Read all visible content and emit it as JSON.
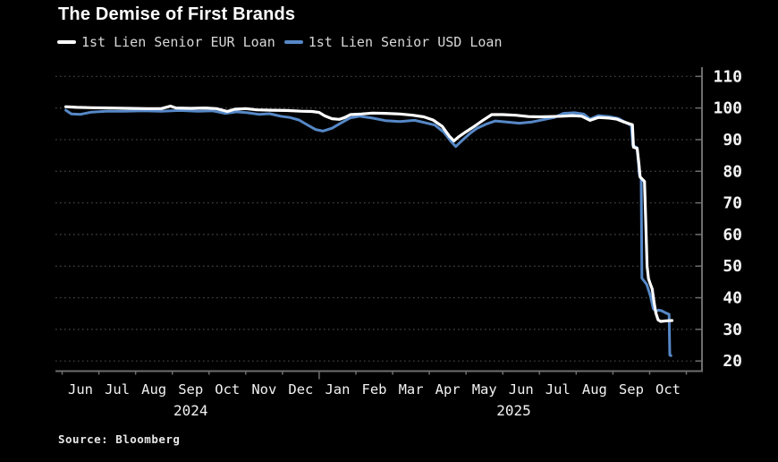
{
  "title": {
    "text": "The Demise of First Brands"
  },
  "source": {
    "text": "Source: Bloomberg"
  },
  "legend": {
    "items": [
      {
        "label": "1st Lien Senior EUR Loan",
        "color": "#ffffff"
      },
      {
        "label": "1st Lien Senior USD Loan",
        "color": "#5688c7"
      }
    ]
  },
  "colors": {
    "background": "#000000",
    "grid": "#484848",
    "axis": "#6e6e6e",
    "tick": "#6e6e6e",
    "text": "#f2f2f2",
    "eur_line": "#ffffff",
    "usd_line": "#5688c7"
  },
  "chart_data": {
    "type": "line",
    "title": "The Demise of First Brands",
    "x_unit": "months since 2024-06-01",
    "x_range": [
      0,
      17.4
    ],
    "grid": "dotted-horizontal",
    "legend_position": "top-left",
    "y_axis": {
      "side": "right",
      "min": 20,
      "max": 110,
      "step": 10,
      "ticks": [
        110,
        100,
        90,
        80,
        70,
        60,
        50,
        40,
        30,
        20
      ]
    },
    "x_axis": {
      "months": [
        "Jun",
        "Jul",
        "Aug",
        "Sep",
        "Oct",
        "Nov",
        "Dec",
        "Jan",
        "Feb",
        "Mar",
        "Apr",
        "May",
        "Jun",
        "Jul",
        "Aug",
        "Sep",
        "Oct"
      ],
      "years": [
        {
          "label": "2024",
          "position": 3.5
        },
        {
          "label": "2025",
          "position": 12.3
        }
      ],
      "year_boundary_tick": 7
    },
    "series": [
      {
        "name": "1st Lien Senior USD Loan",
        "color": "#5688c7",
        "width": 3,
        "points": [
          [
            0.1,
            99.3
          ],
          [
            0.25,
            98.1
          ],
          [
            0.5,
            98.0
          ],
          [
            0.8,
            98.7
          ],
          [
            1.2,
            99.0
          ],
          [
            1.7,
            99.0
          ],
          [
            2.2,
            99.1
          ],
          [
            2.7,
            99.0
          ],
          [
            3.2,
            99.2
          ],
          [
            3.7,
            99.0
          ],
          [
            4.1,
            99.1
          ],
          [
            4.45,
            98.3
          ],
          [
            4.75,
            98.8
          ],
          [
            5.05,
            98.5
          ],
          [
            5.35,
            98.0
          ],
          [
            5.65,
            98.2
          ],
          [
            5.95,
            97.4
          ],
          [
            6.2,
            97.0
          ],
          [
            6.45,
            96.2
          ],
          [
            6.7,
            94.5
          ],
          [
            6.9,
            93.2
          ],
          [
            7.1,
            92.7
          ],
          [
            7.35,
            93.6
          ],
          [
            7.6,
            95.3
          ],
          [
            7.85,
            96.9
          ],
          [
            8.1,
            97.4
          ],
          [
            8.45,
            96.8
          ],
          [
            8.8,
            96.0
          ],
          [
            9.2,
            95.7
          ],
          [
            9.6,
            96.1
          ],
          [
            9.9,
            95.3
          ],
          [
            10.15,
            94.6
          ],
          [
            10.4,
            92.3
          ],
          [
            10.6,
            89.3
          ],
          [
            10.72,
            87.8
          ],
          [
            10.9,
            89.8
          ],
          [
            11.1,
            91.9
          ],
          [
            11.3,
            93.6
          ],
          [
            11.55,
            94.9
          ],
          [
            11.8,
            95.9
          ],
          [
            12.1,
            95.6
          ],
          [
            12.45,
            95.2
          ],
          [
            12.8,
            95.6
          ],
          [
            13.1,
            96.3
          ],
          [
            13.4,
            97.0
          ],
          [
            13.65,
            98.3
          ],
          [
            13.95,
            98.5
          ],
          [
            14.2,
            98.1
          ],
          [
            14.38,
            96.5
          ],
          [
            14.6,
            97.6
          ],
          [
            14.9,
            97.3
          ],
          [
            15.15,
            96.7
          ],
          [
            15.35,
            95.4
          ],
          [
            15.5,
            94.5
          ],
          [
            15.54,
            88.2
          ],
          [
            15.66,
            87.4
          ],
          [
            15.72,
            78.8
          ],
          [
            15.77,
            77.6
          ],
          [
            15.79,
            46.2
          ],
          [
            15.92,
            44.2
          ],
          [
            16.02,
            40.6
          ],
          [
            16.1,
            36.5
          ],
          [
            16.18,
            35.7
          ],
          [
            16.24,
            36.1
          ],
          [
            16.32,
            35.9
          ],
          [
            16.42,
            35.3
          ],
          [
            16.5,
            34.9
          ],
          [
            16.53,
            34.8
          ],
          [
            16.55,
            21.9
          ],
          [
            16.58,
            21.7
          ]
        ]
      },
      {
        "name": "1st Lien Senior EUR Loan",
        "color": "#ffffff",
        "width": 3.2,
        "points": [
          [
            0.1,
            100.4
          ],
          [
            0.4,
            100.2
          ],
          [
            0.8,
            100.1
          ],
          [
            1.3,
            100.0
          ],
          [
            1.8,
            99.9
          ],
          [
            2.3,
            99.8
          ],
          [
            2.7,
            99.8
          ],
          [
            2.95,
            100.6
          ],
          [
            3.1,
            100.0
          ],
          [
            3.5,
            99.9
          ],
          [
            3.9,
            100.0
          ],
          [
            4.2,
            99.8
          ],
          [
            4.5,
            98.9
          ],
          [
            4.7,
            99.6
          ],
          [
            5.0,
            99.8
          ],
          [
            5.3,
            99.4
          ],
          [
            5.7,
            99.3
          ],
          [
            6.1,
            99.2
          ],
          [
            6.5,
            99.0
          ],
          [
            6.8,
            98.9
          ],
          [
            7.0,
            98.6
          ],
          [
            7.15,
            97.5
          ],
          [
            7.35,
            96.6
          ],
          [
            7.55,
            96.4
          ],
          [
            7.7,
            97.0
          ],
          [
            7.85,
            97.9
          ],
          [
            8.15,
            98.1
          ],
          [
            8.45,
            98.4
          ],
          [
            8.8,
            98.3
          ],
          [
            9.2,
            98.1
          ],
          [
            9.55,
            97.7
          ],
          [
            9.85,
            97.2
          ],
          [
            10.1,
            96.2
          ],
          [
            10.35,
            94.2
          ],
          [
            10.55,
            91.0
          ],
          [
            10.67,
            89.6
          ],
          [
            10.8,
            90.9
          ],
          [
            11.0,
            92.5
          ],
          [
            11.2,
            94.0
          ],
          [
            11.45,
            96.0
          ],
          [
            11.7,
            97.9
          ],
          [
            12.0,
            97.9
          ],
          [
            12.35,
            97.7
          ],
          [
            12.7,
            97.3
          ],
          [
            13.0,
            97.2
          ],
          [
            13.3,
            97.3
          ],
          [
            13.6,
            97.4
          ],
          [
            13.9,
            97.6
          ],
          [
            14.15,
            97.4
          ],
          [
            14.38,
            96.1
          ],
          [
            14.6,
            97.0
          ],
          [
            14.9,
            96.8
          ],
          [
            15.1,
            96.5
          ],
          [
            15.3,
            95.6
          ],
          [
            15.45,
            95.0
          ],
          [
            15.53,
            94.7
          ],
          [
            15.56,
            87.6
          ],
          [
            15.66,
            87.2
          ],
          [
            15.71,
            82.0
          ],
          [
            15.74,
            78.2
          ],
          [
            15.86,
            76.8
          ],
          [
            15.89,
            66.0
          ],
          [
            15.93,
            50.0
          ],
          [
            15.97,
            46.0
          ],
          [
            16.02,
            44.3
          ],
          [
            16.07,
            42.8
          ],
          [
            16.12,
            38.6
          ],
          [
            16.17,
            35.2
          ],
          [
            16.23,
            33.0
          ],
          [
            16.3,
            32.5
          ],
          [
            16.45,
            32.7
          ],
          [
            16.61,
            32.8
          ]
        ]
      }
    ]
  }
}
